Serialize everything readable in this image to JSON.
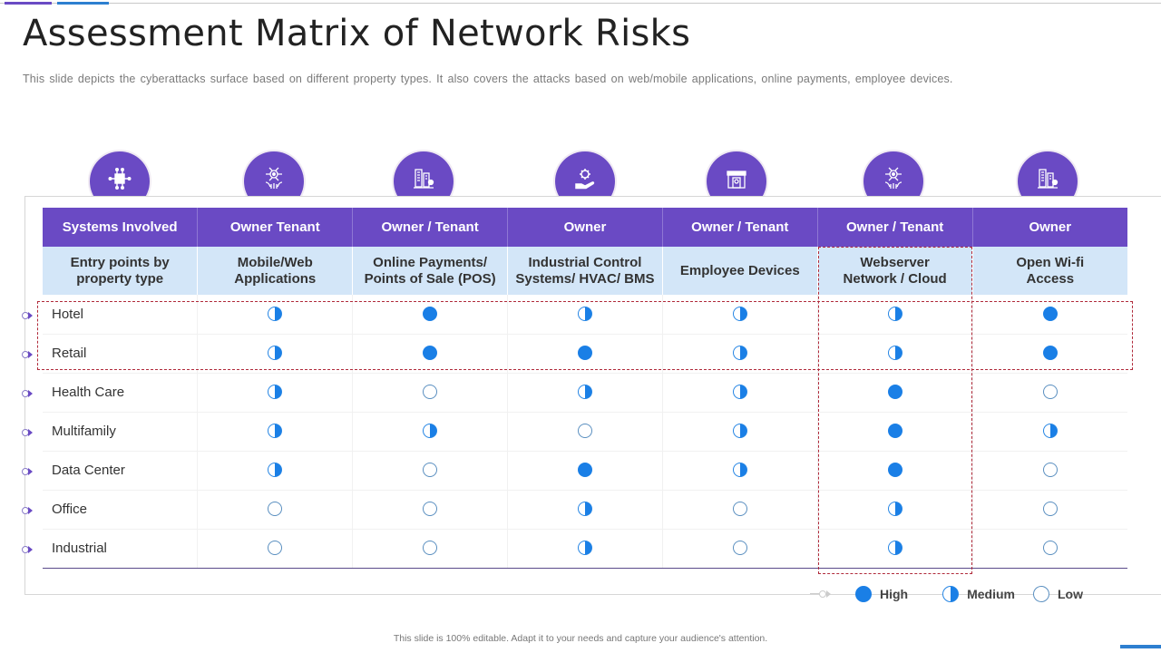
{
  "header": {
    "title": "Assessment Matrix of Network Risks",
    "subtitle": "This slide depicts the cyberattacks surface based on different property types. It also covers the attacks based on web/mobile applications, online payments, employee devices."
  },
  "colors": {
    "header_purple": "#6a4ac4",
    "subheader_blue": "#d3e6f8",
    "dot_blue": "#1a7fe6",
    "highlight_red": "#b02a3a"
  },
  "columns": [
    {
      "icon": "circuit-chip-icon",
      "owner": "Systems Involved",
      "entry": "Entry points by property type"
    },
    {
      "icon": "hands-network-icon",
      "owner": "Owner Tenant",
      "entry": "Mobile/Web Applications"
    },
    {
      "icon": "buildings-icon",
      "owner": "Owner / Tenant",
      "entry": "Online Payments/ Points of Sale (POS)"
    },
    {
      "icon": "gear-hand-icon",
      "owner": "Owner",
      "entry": "Industrial Control Systems/ HVAC/ BMS"
    },
    {
      "icon": "storefront-icon",
      "owner": "Owner / Tenant",
      "entry": "Employee Devices"
    },
    {
      "icon": "hands-network-icon",
      "owner": "Owner / Tenant",
      "entry": "Webserver Network / Cloud"
    },
    {
      "icon": "buildings-icon",
      "owner": "Owner",
      "entry": "Open Wi-fi Access"
    }
  ],
  "rows": [
    {
      "label": "Hotel",
      "ratings": [
        "medium",
        "high",
        "medium",
        "medium",
        "medium",
        "high"
      ]
    },
    {
      "label": "Retail",
      "ratings": [
        "medium",
        "high",
        "high",
        "medium",
        "medium",
        "high"
      ]
    },
    {
      "label": "Health Care",
      "ratings": [
        "medium",
        "low",
        "medium",
        "medium",
        "high",
        "low"
      ]
    },
    {
      "label": "Multifamily",
      "ratings": [
        "medium",
        "medium",
        "low",
        "medium",
        "high",
        "medium"
      ]
    },
    {
      "label": "Data Center",
      "ratings": [
        "medium",
        "low",
        "high",
        "medium",
        "high",
        "low"
      ]
    },
    {
      "label": "Office",
      "ratings": [
        "low",
        "low",
        "medium",
        "low",
        "medium",
        "low"
      ]
    },
    {
      "label": "Industrial",
      "ratings": [
        "low",
        "low",
        "medium",
        "low",
        "medium",
        "low"
      ]
    }
  ],
  "highlights": {
    "rows": [
      "Hotel",
      "Retail"
    ],
    "column": "Webserver Network / Cloud"
  },
  "legend": [
    {
      "level": "high",
      "label": "High"
    },
    {
      "level": "medium",
      "label": "Medium"
    },
    {
      "level": "low",
      "label": "Low"
    }
  ],
  "footer": "This slide is 100% editable. Adapt it to your needs and capture your audience's attention."
}
